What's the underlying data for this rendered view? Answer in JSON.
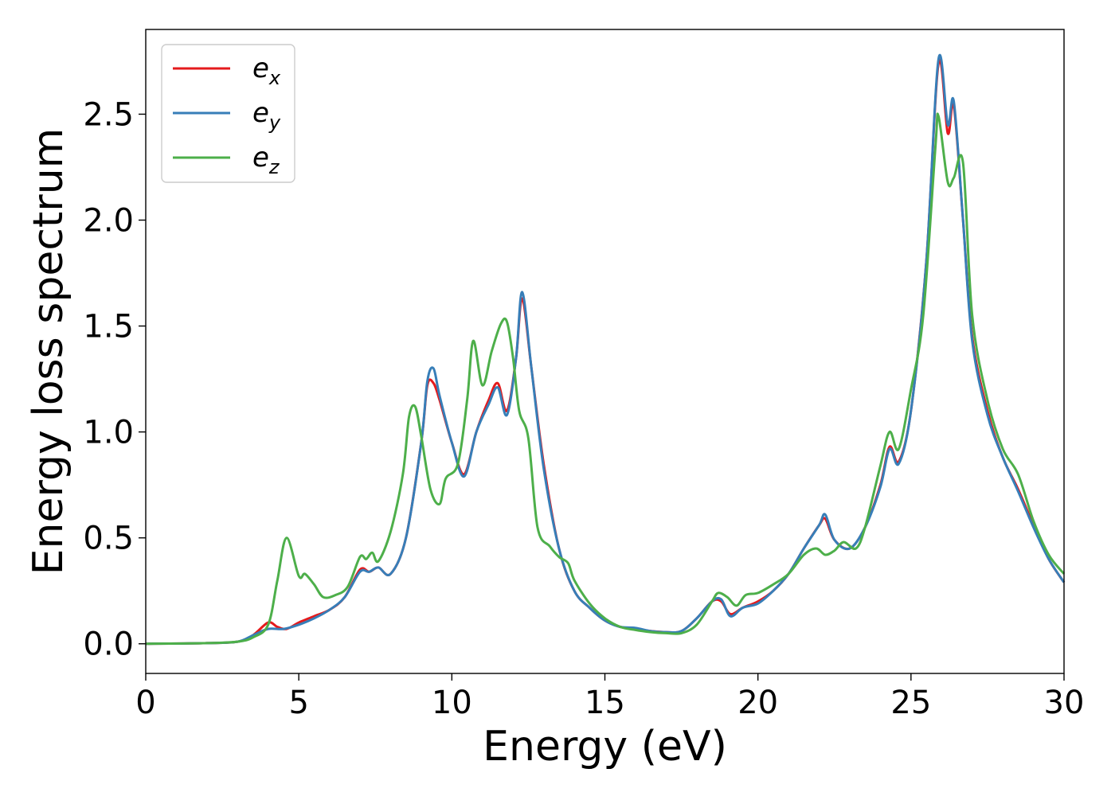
{
  "chart_data": {
    "type": "line",
    "title": "",
    "xlabel": "Energy (eV)",
    "ylabel": "Energy loss spectrum",
    "xlim": [
      0,
      30
    ],
    "ylim": [
      -0.14,
      2.9
    ],
    "xticks": [
      0,
      5,
      10,
      15,
      20,
      25,
      30
    ],
    "xtick_labels": [
      "0",
      "5",
      "10",
      "15",
      "20",
      "25",
      "30"
    ],
    "yticks": [
      0.0,
      0.5,
      1.0,
      1.5,
      2.0,
      2.5
    ],
    "ytick_labels": [
      "0.0",
      "0.5",
      "1.0",
      "1.5",
      "2.0",
      "2.5"
    ],
    "grid": false,
    "legend_position": "top-left",
    "series": [
      {
        "name": "e_x",
        "color": "#e41a1c",
        "points": [
          [
            0,
            0
          ],
          [
            2,
            0.003
          ],
          [
            3,
            0.01
          ],
          [
            3.5,
            0.04
          ],
          [
            4,
            0.1
          ],
          [
            4.3,
            0.08
          ],
          [
            4.6,
            0.07
          ],
          [
            5,
            0.1
          ],
          [
            5.5,
            0.13
          ],
          [
            6,
            0.16
          ],
          [
            6.5,
            0.22
          ],
          [
            7,
            0.35
          ],
          [
            7.3,
            0.34
          ],
          [
            7.6,
            0.36
          ],
          [
            8,
            0.33
          ],
          [
            8.5,
            0.5
          ],
          [
            9,
            0.95
          ],
          [
            9.2,
            1.22
          ],
          [
            9.4,
            1.23
          ],
          [
            9.6,
            1.15
          ],
          [
            10,
            0.95
          ],
          [
            10.4,
            0.8
          ],
          [
            10.8,
            1.0
          ],
          [
            11.2,
            1.15
          ],
          [
            11.5,
            1.23
          ],
          [
            11.8,
            1.1
          ],
          [
            12.1,
            1.35
          ],
          [
            12.3,
            1.63
          ],
          [
            12.6,
            1.3
          ],
          [
            13,
            0.85
          ],
          [
            13.5,
            0.45
          ],
          [
            14,
            0.25
          ],
          [
            14.5,
            0.17
          ],
          [
            15,
            0.11
          ],
          [
            15.5,
            0.08
          ],
          [
            16,
            0.07
          ],
          [
            16.5,
            0.06
          ],
          [
            17,
            0.055
          ],
          [
            17.5,
            0.06
          ],
          [
            18,
            0.12
          ],
          [
            18.5,
            0.2
          ],
          [
            18.8,
            0.2
          ],
          [
            19.1,
            0.14
          ],
          [
            19.5,
            0.17
          ],
          [
            20,
            0.2
          ],
          [
            20.5,
            0.25
          ],
          [
            21,
            0.33
          ],
          [
            21.5,
            0.45
          ],
          [
            22,
            0.56
          ],
          [
            22.2,
            0.59
          ],
          [
            22.5,
            0.49
          ],
          [
            23,
            0.45
          ],
          [
            23.5,
            0.55
          ],
          [
            24,
            0.75
          ],
          [
            24.3,
            0.93
          ],
          [
            24.6,
            0.86
          ],
          [
            25,
            1.1
          ],
          [
            25.5,
            1.8
          ],
          [
            25.9,
            2.74
          ],
          [
            26.2,
            2.41
          ],
          [
            26.4,
            2.54
          ],
          [
            26.7,
            2.0
          ],
          [
            27,
            1.45
          ],
          [
            27.5,
            1.1
          ],
          [
            28,
            0.88
          ],
          [
            28.5,
            0.73
          ],
          [
            29,
            0.56
          ],
          [
            29.5,
            0.4
          ],
          [
            30,
            0.29
          ]
        ]
      },
      {
        "name": "e_y",
        "color": "#377eb8",
        "points": [
          [
            0,
            0
          ],
          [
            2,
            0.003
          ],
          [
            3,
            0.01
          ],
          [
            3.5,
            0.04
          ],
          [
            4,
            0.07
          ],
          [
            4.5,
            0.07
          ],
          [
            5,
            0.09
          ],
          [
            5.5,
            0.12
          ],
          [
            6,
            0.16
          ],
          [
            6.5,
            0.22
          ],
          [
            7,
            0.34
          ],
          [
            7.3,
            0.34
          ],
          [
            7.6,
            0.36
          ],
          [
            8,
            0.33
          ],
          [
            8.5,
            0.5
          ],
          [
            9,
            0.95
          ],
          [
            9.2,
            1.24
          ],
          [
            9.4,
            1.3
          ],
          [
            9.6,
            1.17
          ],
          [
            10,
            0.95
          ],
          [
            10.4,
            0.79
          ],
          [
            10.8,
            1.0
          ],
          [
            11.2,
            1.13
          ],
          [
            11.5,
            1.21
          ],
          [
            11.8,
            1.08
          ],
          [
            12.1,
            1.35
          ],
          [
            12.3,
            1.66
          ],
          [
            12.6,
            1.3
          ],
          [
            13,
            0.83
          ],
          [
            13.5,
            0.45
          ],
          [
            14,
            0.25
          ],
          [
            14.5,
            0.17
          ],
          [
            15,
            0.11
          ],
          [
            15.5,
            0.08
          ],
          [
            16,
            0.075
          ],
          [
            16.5,
            0.06
          ],
          [
            17,
            0.055
          ],
          [
            17.5,
            0.06
          ],
          [
            18,
            0.12
          ],
          [
            18.5,
            0.2
          ],
          [
            18.8,
            0.21
          ],
          [
            19.1,
            0.13
          ],
          [
            19.5,
            0.17
          ],
          [
            20,
            0.19
          ],
          [
            20.5,
            0.25
          ],
          [
            21,
            0.33
          ],
          [
            21.5,
            0.45
          ],
          [
            22,
            0.56
          ],
          [
            22.2,
            0.61
          ],
          [
            22.5,
            0.49
          ],
          [
            23,
            0.45
          ],
          [
            23.5,
            0.55
          ],
          [
            24,
            0.74
          ],
          [
            24.3,
            0.92
          ],
          [
            24.6,
            0.85
          ],
          [
            25,
            1.1
          ],
          [
            25.5,
            1.8
          ],
          [
            25.9,
            2.76
          ],
          [
            26.2,
            2.45
          ],
          [
            26.4,
            2.56
          ],
          [
            26.7,
            2.0
          ],
          [
            27,
            1.43
          ],
          [
            27.5,
            1.08
          ],
          [
            28,
            0.88
          ],
          [
            28.5,
            0.72
          ],
          [
            29,
            0.55
          ],
          [
            29.5,
            0.4
          ],
          [
            30,
            0.29
          ]
        ]
      },
      {
        "name": "e_z",
        "color": "#4daf4a",
        "points": [
          [
            0,
            0
          ],
          [
            2,
            0.003
          ],
          [
            3,
            0.01
          ],
          [
            3.5,
            0.03
          ],
          [
            4,
            0.09
          ],
          [
            4.3,
            0.3
          ],
          [
            4.6,
            0.5
          ],
          [
            5,
            0.32
          ],
          [
            5.2,
            0.33
          ],
          [
            5.5,
            0.28
          ],
          [
            5.8,
            0.22
          ],
          [
            6.2,
            0.23
          ],
          [
            6.6,
            0.27
          ],
          [
            7,
            0.41
          ],
          [
            7.2,
            0.4
          ],
          [
            7.4,
            0.43
          ],
          [
            7.6,
            0.39
          ],
          [
            8,
            0.53
          ],
          [
            8.4,
            0.8
          ],
          [
            8.6,
            1.07
          ],
          [
            8.8,
            1.12
          ],
          [
            9,
            0.98
          ],
          [
            9.3,
            0.73
          ],
          [
            9.6,
            0.66
          ],
          [
            9.8,
            0.78
          ],
          [
            10.2,
            0.85
          ],
          [
            10.5,
            1.15
          ],
          [
            10.7,
            1.43
          ],
          [
            11,
            1.22
          ],
          [
            11.3,
            1.38
          ],
          [
            11.6,
            1.51
          ],
          [
            11.8,
            1.52
          ],
          [
            12,
            1.35
          ],
          [
            12.2,
            1.1
          ],
          [
            12.5,
            0.97
          ],
          [
            12.8,
            0.55
          ],
          [
            13.2,
            0.46
          ],
          [
            13.5,
            0.41
          ],
          [
            13.8,
            0.38
          ],
          [
            14,
            0.3
          ],
          [
            14.5,
            0.19
          ],
          [
            15,
            0.12
          ],
          [
            15.5,
            0.08
          ],
          [
            16,
            0.065
          ],
          [
            16.5,
            0.055
          ],
          [
            17,
            0.05
          ],
          [
            17.5,
            0.05
          ],
          [
            18,
            0.09
          ],
          [
            18.5,
            0.2
          ],
          [
            18.7,
            0.24
          ],
          [
            19,
            0.22
          ],
          [
            19.3,
            0.18
          ],
          [
            19.6,
            0.23
          ],
          [
            20,
            0.24
          ],
          [
            20.5,
            0.28
          ],
          [
            21,
            0.33
          ],
          [
            21.5,
            0.42
          ],
          [
            21.9,
            0.45
          ],
          [
            22.2,
            0.42
          ],
          [
            22.5,
            0.44
          ],
          [
            22.8,
            0.48
          ],
          [
            23.2,
            0.45
          ],
          [
            23.5,
            0.55
          ],
          [
            24,
            0.84
          ],
          [
            24.3,
            1.0
          ],
          [
            24.6,
            0.92
          ],
          [
            25,
            1.2
          ],
          [
            25.4,
            1.55
          ],
          [
            25.8,
            2.35
          ],
          [
            25.9,
            2.49
          ],
          [
            26.2,
            2.18
          ],
          [
            26.4,
            2.2
          ],
          [
            26.7,
            2.27
          ],
          [
            27,
            1.55
          ],
          [
            27.5,
            1.15
          ],
          [
            28,
            0.92
          ],
          [
            28.5,
            0.8
          ],
          [
            29,
            0.58
          ],
          [
            29.5,
            0.42
          ],
          [
            30,
            0.33
          ]
        ]
      }
    ]
  }
}
